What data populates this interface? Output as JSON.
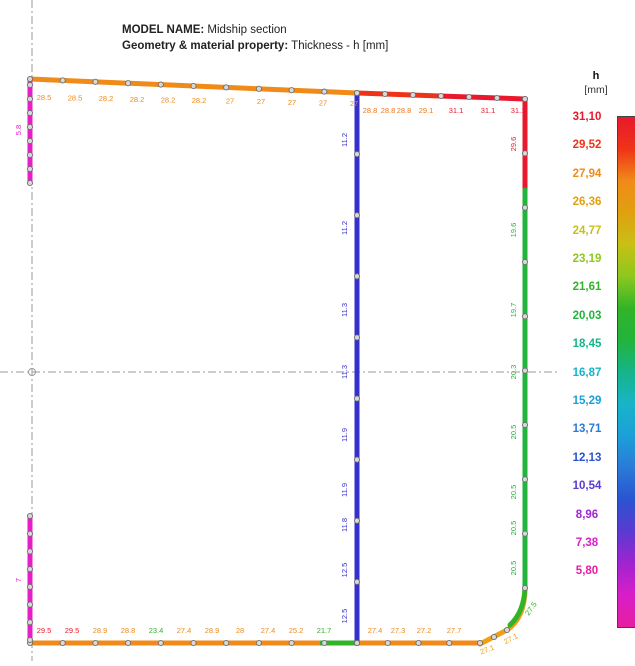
{
  "header": {
    "model_name_key": "MODEL NAME:",
    "model_name_value": "Midship section",
    "property_key": "Geometry & material property:",
    "property_value": "Thickness - h [mm]"
  },
  "legend": {
    "title": "h",
    "unit": "[mm]",
    "values": [
      "31,10",
      "29,52",
      "27,94",
      "26,36",
      "24,77",
      "23,19",
      "21,61",
      "20,03",
      "18,45",
      "16,87",
      "15,29",
      "13,71",
      "12,13",
      "10,54",
      "8,96",
      "7,38",
      "5,80"
    ],
    "colors": [
      "#e8192c",
      "#ef3318",
      "#f08a18",
      "#e0a010",
      "#c8c015",
      "#8cc81e",
      "#32b428",
      "#22b43c",
      "#16b48a",
      "#18b4c8",
      "#1ca0d8",
      "#2a7ad8",
      "#2a54d0",
      "#5a3ad0",
      "#a024d0",
      "#d81ec8",
      "#e61ea0"
    ]
  },
  "members": {
    "deck_left_labels": [
      "28.5",
      "28.5",
      "28.2",
      "28.2",
      "28.2",
      "28.2",
      "27",
      "27",
      "27",
      "27",
      "27"
    ],
    "deck_right_labels": [
      "28.8",
      "28.8",
      "28.8",
      "29.1",
      "31.1",
      "31.1",
      "31.1"
    ],
    "side_upper_label": "29.6",
    "side_labels": [
      "19.6",
      "19.7",
      "20.3",
      "20.5",
      "20.5",
      "20.5",
      "20.5"
    ],
    "center_labels": [
      "11.2",
      "11.2",
      "11.3",
      "11.3",
      "11.9",
      "11.9",
      "11.8",
      "12.5",
      "12.5"
    ],
    "bottom_left_labels": [
      "29.5",
      "29.5",
      "28.9",
      "28.8",
      "23.4",
      "27.4",
      "28.9",
      "28",
      "27.4",
      "25.2",
      "21.7"
    ],
    "bottom_right_labels": [
      "27.4",
      "27.3",
      "27.2",
      "27.7"
    ],
    "bilge_labels": [
      "27.1",
      "27.1",
      "27.5"
    ],
    "left_upper_label": "5.8",
    "left_lower_label": "7"
  }
}
